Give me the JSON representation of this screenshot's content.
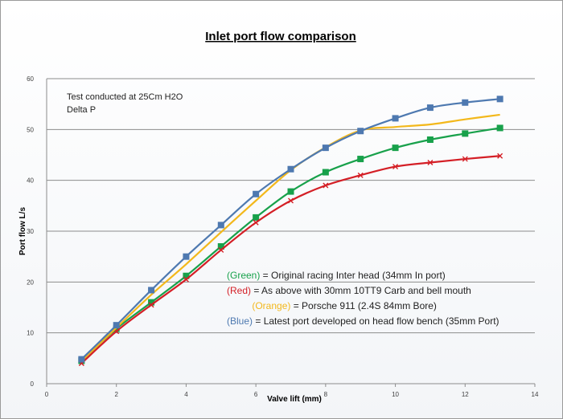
{
  "chart_data": {
    "type": "line",
    "title": "Inlet port flow comparison",
    "xlabel": "Valve lift (mm)",
    "ylabel": "Port flow L/s",
    "xlim": [
      0,
      14
    ],
    "ylim": [
      0,
      60
    ],
    "xticks": [
      "0",
      "2",
      "4",
      "6",
      "8",
      "10",
      "12",
      "14"
    ],
    "yticks": [
      "0",
      "10",
      "20",
      "30",
      "40",
      "50",
      "60"
    ],
    "grid": "horizontal",
    "annotation": [
      "Test conducted at 25Cm H2O",
      "Delta P"
    ],
    "legend_text": [
      {
        "color_word": "(Green)",
        "rest": " = Original racing Inter head (34mm In port)",
        "color": "#18a14b"
      },
      {
        "color_word": "(Red)",
        "rest": " = As above with 30mm 10TT9 Carb and bell mouth",
        "color": "#d41f26"
      },
      {
        "color_word": " (Orange)",
        "rest": " = Porsche 911 (2.4S 84mm Bore)",
        "color": "#f3b81b"
      },
      {
        "color_word": "(Blue)",
        "rest": " = Latest port developed on head flow bench (35mm Port)",
        "color": "#4e79b0"
      }
    ],
    "x": [
      1,
      2,
      3,
      4,
      5,
      6,
      7,
      8,
      9,
      10,
      11,
      12,
      13
    ],
    "series": [
      {
        "key": "green",
        "color": "#18a14b",
        "marker": "square",
        "values": [
          4.5,
          10.8,
          16,
          21.2,
          27,
          32.7,
          37.8,
          41.6,
          44.2,
          46.4,
          48,
          49.2,
          50.3
        ]
      },
      {
        "key": "red",
        "color": "#d41f26",
        "marker": "x",
        "values": [
          4,
          10.3,
          15.5,
          20.5,
          26.3,
          31.7,
          36,
          39,
          41,
          42.7,
          43.5,
          44.2,
          44.8
        ]
      },
      {
        "key": "orange",
        "color": "#f3b81b",
        "marker": "none",
        "values": [
          4.5,
          11,
          17.5,
          23.5,
          29.8,
          36,
          42,
          46.5,
          49.8,
          50.5,
          51,
          52,
          52.9
        ]
      },
      {
        "key": "blue",
        "color": "#4e79b0",
        "marker": "square",
        "values": [
          4.8,
          11.5,
          18.4,
          25,
          31.2,
          37.3,
          42.2,
          46.4,
          49.7,
          52.2,
          54.3,
          55.3,
          56
        ]
      }
    ]
  }
}
